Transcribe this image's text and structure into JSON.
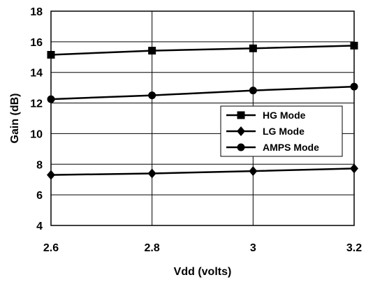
{
  "chart_data": {
    "type": "line",
    "x": [
      2.6,
      2.8,
      3.0,
      3.2
    ],
    "x_tick_labels": [
      "2.6",
      "2.8",
      "3",
      "3.2"
    ],
    "y_tick_labels": [
      "4",
      "6",
      "8",
      "10",
      "12",
      "14",
      "16",
      "18"
    ],
    "xlabel": "Vdd (volts)",
    "ylabel": "Gain (dB)",
    "xlim": [
      2.6,
      3.2
    ],
    "ylim": [
      4,
      18
    ],
    "y_ticks": [
      4,
      6,
      8,
      10,
      12,
      14,
      16,
      18
    ],
    "grid": true,
    "legend_position": "center-right",
    "series": [
      {
        "name": "HG Mode",
        "marker": "square",
        "values": [
          15.15,
          15.42,
          15.57,
          15.75
        ]
      },
      {
        "name": "LG Mode",
        "marker": "diamond",
        "values": [
          7.3,
          7.4,
          7.55,
          7.72
        ]
      },
      {
        "name": "AMPS Mode",
        "marker": "circle",
        "values": [
          12.25,
          12.5,
          12.82,
          13.07
        ]
      }
    ],
    "line_color": "#000000"
  }
}
